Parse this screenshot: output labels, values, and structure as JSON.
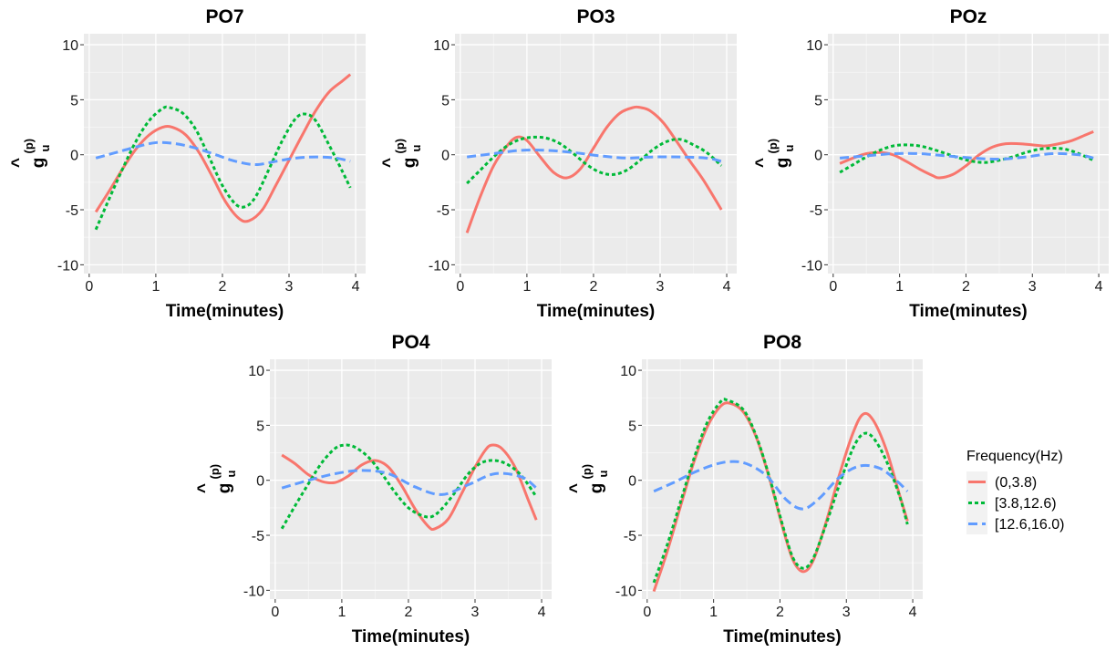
{
  "legend": {
    "title": "Frequency(Hz)",
    "entries": [
      {
        "label": "(0,3.8)",
        "color": "#F8766D",
        "dash": "solid"
      },
      {
        "label": "[3.8,12.6)",
        "color": "#00BA38",
        "dash": "dotted"
      },
      {
        "label": "[12.6,16.0)",
        "color": "#619CFF",
        "dash": "dashed"
      }
    ]
  },
  "ylabel_symbol": {
    "hat": "^",
    "base": "g",
    "super": "(p)",
    "sub": "u"
  },
  "chart_data": [
    {
      "type": "line",
      "title": "PO7",
      "xlabel": "Time(minutes)",
      "xlim": [
        -0.08,
        4.15
      ],
      "ylim": [
        -10.8,
        11
      ],
      "xticks": [
        0,
        1,
        2,
        3,
        4
      ],
      "yticks": [
        -10,
        -5,
        0,
        5,
        10
      ],
      "grid": true,
      "series": [
        {
          "name": "(0,3.8)",
          "x": [
            0.1,
            0.3,
            0.5,
            0.7,
            0.9,
            1.1,
            1.25,
            1.45,
            1.65,
            1.85,
            2.05,
            2.25,
            2.4,
            2.6,
            2.8,
            3.0,
            3.2,
            3.4,
            3.6,
            3.8,
            3.92
          ],
          "y": [
            -5.2,
            -3.3,
            -1.3,
            0.5,
            1.8,
            2.5,
            2.5,
            1.8,
            0.2,
            -2.0,
            -4.3,
            -5.8,
            -6.0,
            -5.0,
            -2.8,
            -0.5,
            1.8,
            4.0,
            5.7,
            6.7,
            7.3
          ]
        },
        {
          "name": "[3.8,12.6)",
          "x": [
            0.1,
            0.3,
            0.5,
            0.7,
            0.9,
            1.1,
            1.2,
            1.4,
            1.6,
            1.8,
            2.0,
            2.2,
            2.35,
            2.5,
            2.7,
            2.9,
            3.1,
            3.25,
            3.4,
            3.6,
            3.8,
            3.92
          ],
          "y": [
            -6.8,
            -4.0,
            -1.3,
            1.2,
            3.1,
            4.2,
            4.3,
            3.8,
            2.3,
            -0.2,
            -2.8,
            -4.5,
            -4.7,
            -3.8,
            -1.3,
            1.3,
            3.3,
            3.7,
            3.1,
            0.9,
            -1.5,
            -3.0
          ]
        },
        {
          "name": "[12.6,16.0)",
          "x": [
            0.1,
            0.4,
            0.7,
            1.0,
            1.3,
            1.6,
            1.9,
            2.2,
            2.5,
            2.8,
            3.1,
            3.4,
            3.7,
            3.92
          ],
          "y": [
            -0.3,
            0.2,
            0.7,
            1.1,
            1.0,
            0.6,
            0.0,
            -0.6,
            -0.9,
            -0.6,
            -0.3,
            -0.2,
            -0.3,
            -0.6
          ]
        }
      ]
    },
    {
      "type": "line",
      "title": "PO3",
      "xlabel": "Time(minutes)",
      "xlim": [
        -0.08,
        4.15
      ],
      "ylim": [
        -10.8,
        11
      ],
      "xticks": [
        0,
        1,
        2,
        3,
        4
      ],
      "yticks": [
        -10,
        -5,
        0,
        5,
        10
      ],
      "grid": true,
      "series": [
        {
          "name": "(0,3.8)",
          "x": [
            0.1,
            0.3,
            0.5,
            0.7,
            0.85,
            1.0,
            1.2,
            1.4,
            1.6,
            1.8,
            2.0,
            2.2,
            2.4,
            2.6,
            2.7,
            2.85,
            3.05,
            3.25,
            3.45,
            3.65,
            3.92
          ],
          "y": [
            -7.1,
            -3.8,
            -1.0,
            0.8,
            1.6,
            1.3,
            -0.2,
            -1.6,
            -2.1,
            -1.3,
            0.6,
            2.5,
            3.8,
            4.3,
            4.3,
            4.0,
            2.9,
            1.2,
            -0.6,
            -2.3,
            -5.0
          ]
        },
        {
          "name": "[3.8,12.6)",
          "x": [
            0.1,
            0.3,
            0.5,
            0.7,
            0.9,
            1.1,
            1.3,
            1.5,
            1.7,
            1.9,
            2.1,
            2.3,
            2.5,
            2.7,
            2.9,
            3.1,
            3.3,
            3.5,
            3.7,
            3.92
          ],
          "y": [
            -2.6,
            -1.4,
            -0.2,
            0.8,
            1.4,
            1.6,
            1.5,
            1.0,
            0.1,
            -0.9,
            -1.6,
            -1.8,
            -1.4,
            -0.5,
            0.5,
            1.2,
            1.4,
            0.9,
            0.2,
            -1.0
          ]
        },
        {
          "name": "[12.6,16.0)",
          "x": [
            0.1,
            0.5,
            0.9,
            1.3,
            1.7,
            2.1,
            2.5,
            2.9,
            3.3,
            3.7,
            3.92
          ],
          "y": [
            -0.2,
            0.1,
            0.4,
            0.4,
            0.2,
            -0.1,
            -0.3,
            -0.2,
            -0.2,
            -0.3,
            -0.6
          ]
        }
      ]
    },
    {
      "type": "line",
      "title": "POz",
      "xlabel": "Time(minutes)",
      "xlim": [
        -0.08,
        4.15
      ],
      "ylim": [
        -10.8,
        11
      ],
      "xticks": [
        0,
        1,
        2,
        3,
        4
      ],
      "yticks": [
        -10,
        -5,
        0,
        5,
        10
      ],
      "grid": true,
      "series": [
        {
          "name": "(0,3.8)",
          "x": [
            0.1,
            0.3,
            0.5,
            0.7,
            0.9,
            1.1,
            1.3,
            1.5,
            1.6,
            1.8,
            2.0,
            2.2,
            2.4,
            2.6,
            2.8,
            3.0,
            3.2,
            3.4,
            3.6,
            3.8,
            3.92
          ],
          "y": [
            -0.8,
            -0.3,
            0.1,
            0.2,
            0.0,
            -0.6,
            -1.3,
            -1.9,
            -2.1,
            -1.8,
            -1.0,
            0.0,
            0.7,
            1.0,
            1.0,
            0.9,
            0.8,
            1.0,
            1.3,
            1.8,
            2.1
          ]
        },
        {
          "name": "[3.8,12.6)",
          "x": [
            0.1,
            0.3,
            0.5,
            0.7,
            0.9,
            1.1,
            1.3,
            1.5,
            1.7,
            1.9,
            2.1,
            2.3,
            2.5,
            2.7,
            2.9,
            3.1,
            3.3,
            3.5,
            3.7,
            3.92
          ],
          "y": [
            -1.6,
            -0.9,
            -0.2,
            0.4,
            0.8,
            0.9,
            0.8,
            0.5,
            0.1,
            -0.3,
            -0.6,
            -0.7,
            -0.5,
            -0.2,
            0.2,
            0.5,
            0.6,
            0.5,
            0.1,
            -0.5
          ]
        },
        {
          "name": "[12.6,16.0)",
          "x": [
            0.1,
            0.5,
            0.9,
            1.3,
            1.7,
            2.1,
            2.5,
            2.9,
            3.3,
            3.7,
            3.92
          ],
          "y": [
            -0.3,
            -0.1,
            0.1,
            0.1,
            -0.1,
            -0.3,
            -0.4,
            -0.2,
            0.1,
            0.0,
            -0.3
          ]
        }
      ]
    },
    {
      "type": "line",
      "title": "PO4",
      "xlabel": "Time(minutes)",
      "xlim": [
        -0.08,
        4.15
      ],
      "ylim": [
        -10.8,
        11
      ],
      "xticks": [
        0,
        1,
        2,
        3,
        4
      ],
      "yticks": [
        -10,
        -5,
        0,
        5,
        10
      ],
      "grid": true,
      "series": [
        {
          "name": "(0,3.8)",
          "x": [
            0.1,
            0.3,
            0.5,
            0.7,
            0.9,
            1.1,
            1.3,
            1.5,
            1.7,
            1.9,
            2.1,
            2.3,
            2.4,
            2.6,
            2.8,
            3.0,
            3.15,
            3.25,
            3.4,
            3.6,
            3.8,
            3.92
          ],
          "y": [
            2.3,
            1.5,
            0.5,
            -0.1,
            -0.2,
            0.4,
            1.4,
            1.8,
            1.2,
            -0.5,
            -2.6,
            -4.2,
            -4.4,
            -3.5,
            -1.2,
            1.2,
            2.7,
            3.2,
            2.9,
            1.2,
            -1.8,
            -3.6
          ]
        },
        {
          "name": "[3.8,12.6)",
          "x": [
            0.1,
            0.3,
            0.5,
            0.7,
            0.9,
            1.05,
            1.2,
            1.4,
            1.6,
            1.8,
            2.0,
            2.2,
            2.35,
            2.5,
            2.7,
            2.9,
            3.1,
            3.3,
            3.5,
            3.7,
            3.92
          ],
          "y": [
            -4.4,
            -2.3,
            -0.3,
            1.6,
            2.9,
            3.2,
            3.0,
            2.1,
            0.6,
            -1.1,
            -2.5,
            -3.2,
            -3.3,
            -2.6,
            -1.1,
            0.6,
            1.6,
            1.8,
            1.4,
            0.4,
            -1.5
          ]
        },
        {
          "name": "[12.6,16.0)",
          "x": [
            0.1,
            0.5,
            0.9,
            1.3,
            1.7,
            2.1,
            2.5,
            2.9,
            3.3,
            3.7,
            3.92
          ],
          "y": [
            -0.7,
            0.0,
            0.6,
            0.9,
            0.6,
            -0.6,
            -1.3,
            -0.4,
            0.6,
            0.3,
            -0.7
          ]
        }
      ]
    },
    {
      "type": "line",
      "title": "PO8",
      "xlabel": "Time(minutes)",
      "xlim": [
        -0.08,
        4.15
      ],
      "ylim": [
        -10.8,
        11
      ],
      "xticks": [
        0,
        1,
        2,
        3,
        4
      ],
      "yticks": [
        -10,
        -5,
        0,
        5,
        10
      ],
      "grid": true,
      "series": [
        {
          "name": "(0,3.8)",
          "x": [
            0.1,
            0.3,
            0.5,
            0.7,
            0.9,
            1.1,
            1.25,
            1.45,
            1.65,
            1.85,
            2.05,
            2.2,
            2.35,
            2.5,
            2.7,
            2.9,
            3.1,
            3.25,
            3.4,
            3.6,
            3.8,
            3.92
          ],
          "y": [
            -10.1,
            -6.5,
            -2.4,
            1.6,
            4.8,
            6.7,
            7.0,
            6.2,
            3.8,
            0.0,
            -4.5,
            -7.3,
            -8.3,
            -7.3,
            -3.7,
            0.6,
            4.3,
            6.0,
            5.5,
            2.8,
            -1.3,
            -3.7
          ]
        },
        {
          "name": "[3.8,12.6)",
          "x": [
            0.1,
            0.3,
            0.5,
            0.7,
            0.9,
            1.1,
            1.2,
            1.45,
            1.65,
            1.85,
            2.05,
            2.2,
            2.35,
            2.5,
            2.7,
            2.9,
            3.1,
            3.25,
            3.4,
            3.6,
            3.8,
            3.92
          ],
          "y": [
            -9.3,
            -5.9,
            -2.0,
            1.9,
            5.2,
            7.1,
            7.3,
            6.4,
            3.9,
            0.1,
            -4.3,
            -7.1,
            -8.0,
            -7.1,
            -3.9,
            -0.3,
            2.9,
            4.2,
            3.9,
            1.8,
            -1.4,
            -4.0
          ]
        },
        {
          "name": "[12.6,16.0)",
          "x": [
            0.1,
            0.4,
            0.7,
            1.0,
            1.25,
            1.5,
            1.8,
            2.1,
            2.35,
            2.6,
            2.9,
            3.2,
            3.5,
            3.75,
            3.92
          ],
          "y": [
            -1.0,
            -0.2,
            0.7,
            1.4,
            1.7,
            1.5,
            0.4,
            -1.8,
            -2.6,
            -1.6,
            0.3,
            1.3,
            1.1,
            0.0,
            -1.0
          ]
        }
      ]
    }
  ]
}
